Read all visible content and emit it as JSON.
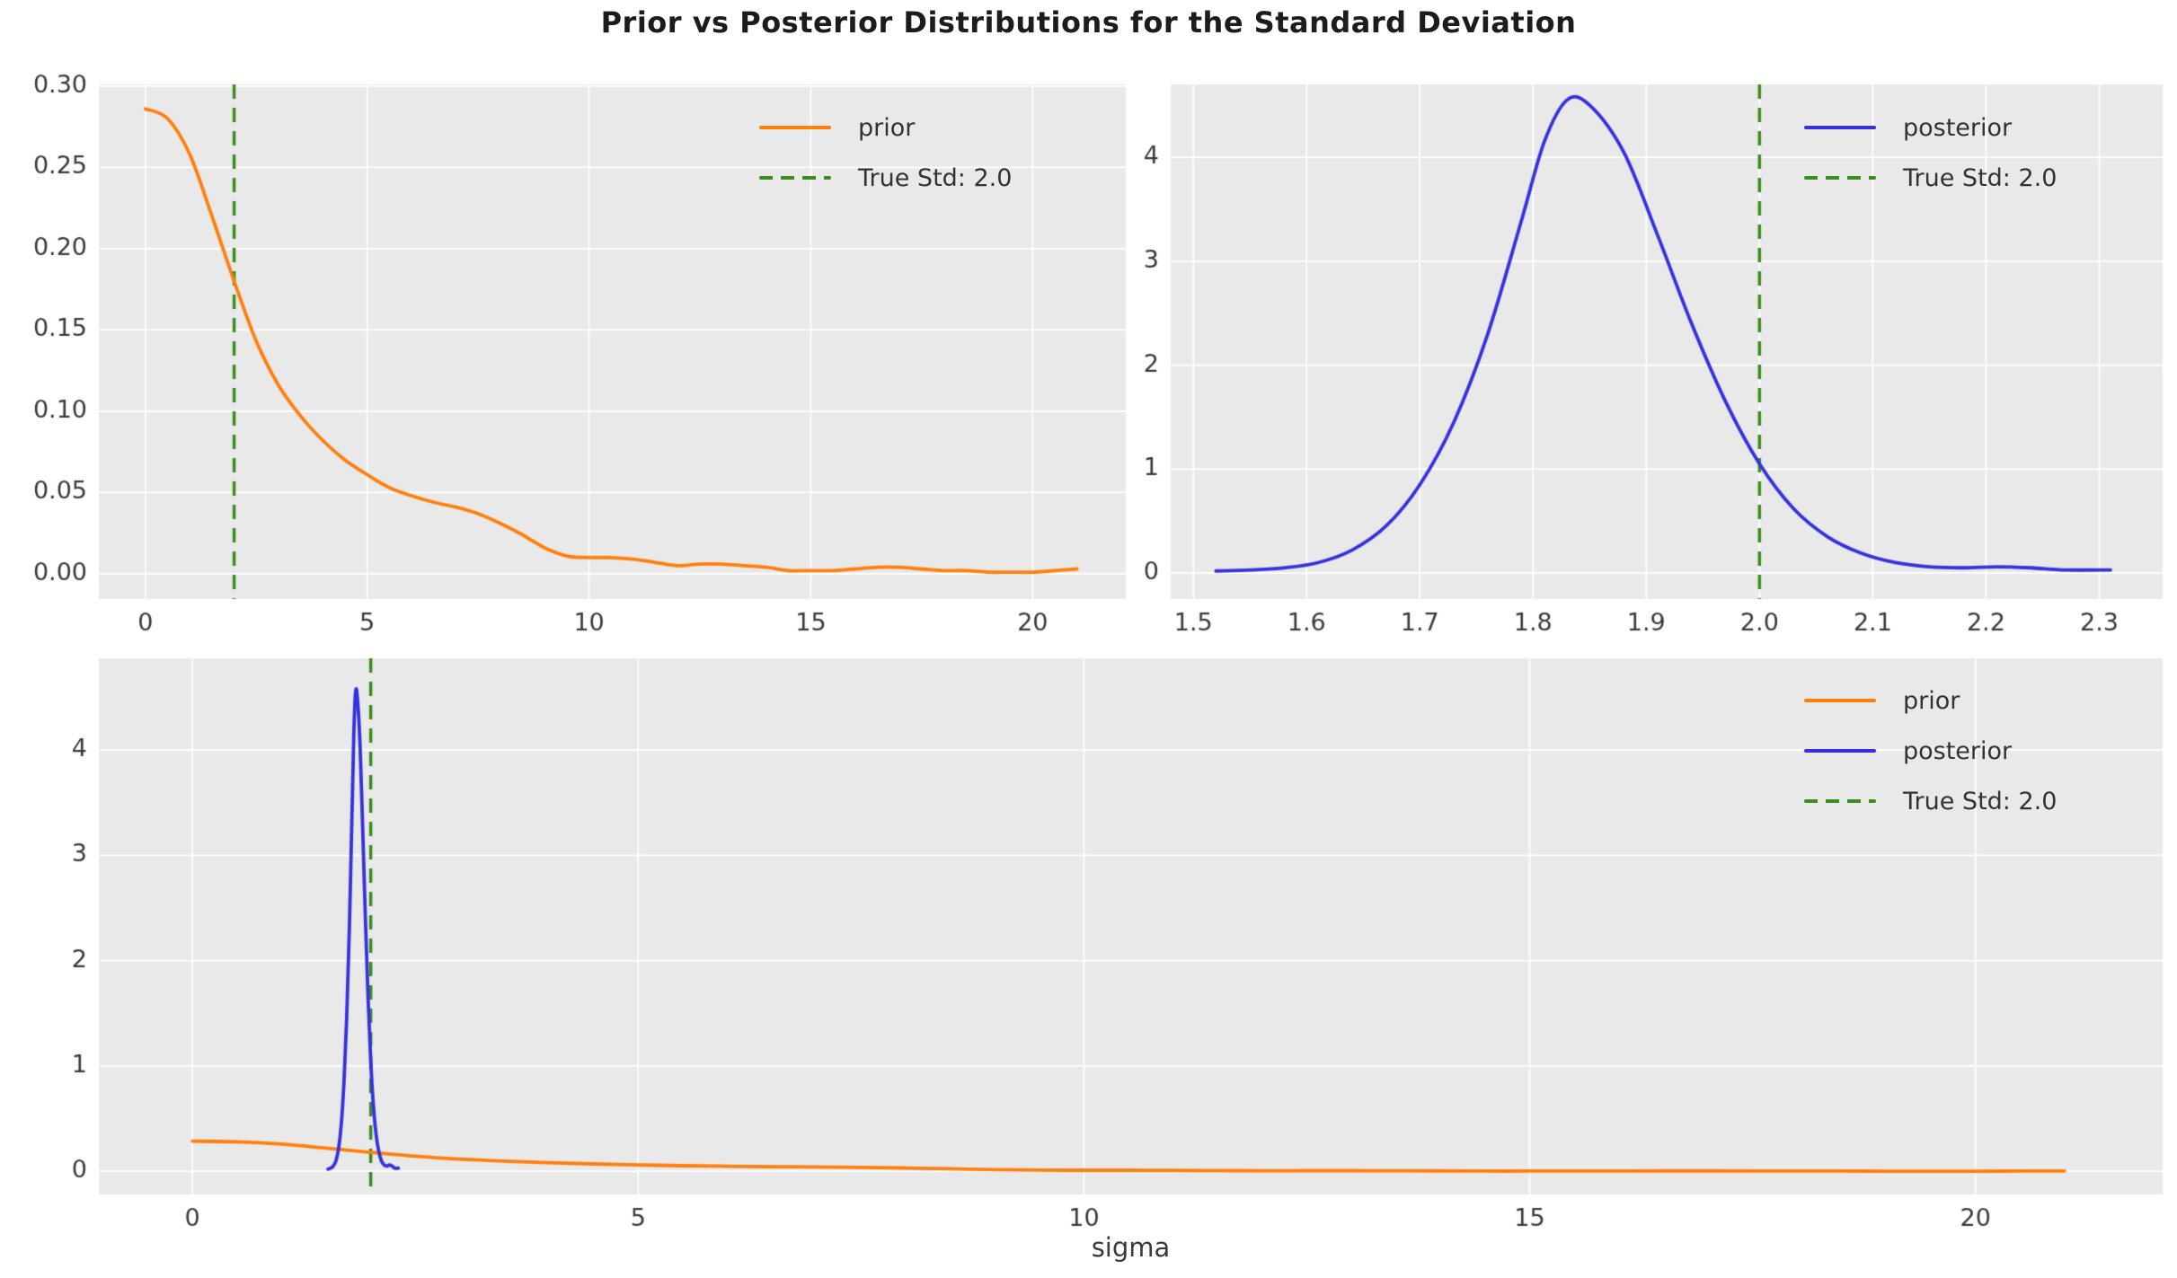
{
  "title": "Prior vs Posterior Distributions for the Standard Deviation",
  "colors": {
    "prior": "#ff7f0e",
    "posterior": "#3531dd",
    "true_std": "#388e1e",
    "axes_bg": "#e9e9e9",
    "grid": "#ffffff",
    "tick_text": "#3a3a3a",
    "title_text": "#1c1c1c",
    "figure_bg": "#ffffff"
  },
  "chart_data": [
    {
      "id": "prior-top-left",
      "type": "line",
      "title": "",
      "xlabel": "",
      "ylabel": "",
      "grid": true,
      "legend_position": "upper right",
      "xlim": [
        -1.05,
        22.1
      ],
      "ylim": [
        -0.0155,
        0.301
      ],
      "xticks": {
        "values": [
          0,
          5,
          10,
          15,
          20
        ],
        "labels": [
          "0",
          "5",
          "10",
          "15",
          "20"
        ]
      },
      "yticks": {
        "values": [
          0.0,
          0.05,
          0.1,
          0.15,
          0.2,
          0.25,
          0.3
        ],
        "labels": [
          "0.00",
          "0.05",
          "0.10",
          "0.15",
          "0.20",
          "0.25",
          "0.30"
        ]
      },
      "series": [
        {
          "name": "prior",
          "color": "#ff7f0e",
          "x": [
            0,
            0.5,
            1,
            1.5,
            2,
            2.5,
            3,
            3.5,
            4,
            4.5,
            5,
            5.5,
            6,
            6.5,
            7,
            7.5,
            8,
            8.5,
            9,
            9.5,
            10,
            10.5,
            11,
            11.5,
            12,
            12.5,
            13,
            13.5,
            14,
            14.5,
            15,
            15.5,
            16,
            16.5,
            17,
            17.5,
            18,
            18.5,
            19,
            19.5,
            20,
            20.5,
            21
          ],
          "y": [
            0.286,
            0.28,
            0.258,
            0.22,
            0.18,
            0.143,
            0.116,
            0.097,
            0.082,
            0.07,
            0.061,
            0.053,
            0.048,
            0.044,
            0.041,
            0.037,
            0.031,
            0.024,
            0.016,
            0.011,
            0.01,
            0.01,
            0.009,
            0.007,
            0.005,
            0.006,
            0.006,
            0.005,
            0.004,
            0.002,
            0.002,
            0.002,
            0.003,
            0.004,
            0.004,
            0.003,
            0.002,
            0.002,
            0.001,
            0.001,
            0.001,
            0.002,
            0.003
          ]
        }
      ],
      "vline": {
        "x": 2.0,
        "label": "True Std: 2.0",
        "color": "#388e1e",
        "style": "dashed"
      },
      "legend": [
        {
          "label": "prior",
          "style": "solid",
          "color": "#ff7f0e"
        },
        {
          "label": "True Std: 2.0",
          "style": "dashed",
          "color": "#388e1e"
        }
      ]
    },
    {
      "id": "posterior-top-right",
      "type": "line",
      "title": "",
      "xlabel": "",
      "ylabel": "",
      "grid": true,
      "legend_position": "upper right",
      "xlim": [
        1.48,
        2.356
      ],
      "ylim": [
        -0.25,
        4.7
      ],
      "xticks": {
        "values": [
          1.5,
          1.6,
          1.7,
          1.8,
          1.9,
          2.0,
          2.1,
          2.2,
          2.3
        ],
        "labels": [
          "1.5",
          "1.6",
          "1.7",
          "1.8",
          "1.9",
          "2.0",
          "2.1",
          "2.2",
          "2.3"
        ]
      },
      "yticks": {
        "values": [
          0,
          1,
          2,
          3,
          4
        ],
        "labels": [
          "0",
          "1",
          "2",
          "3",
          "4"
        ]
      },
      "series": [
        {
          "name": "posterior",
          "color": "#3531dd",
          "x": [
            1.52,
            1.55,
            1.58,
            1.61,
            1.64,
            1.67,
            1.7,
            1.73,
            1.76,
            1.79,
            1.81,
            1.83,
            1.85,
            1.88,
            1.91,
            1.94,
            1.97,
            2.0,
            2.03,
            2.06,
            2.09,
            2.12,
            2.15,
            2.18,
            2.21,
            2.24,
            2.27,
            2.31
          ],
          "y": [
            0.02,
            0.03,
            0.05,
            0.1,
            0.22,
            0.45,
            0.85,
            1.45,
            2.3,
            3.4,
            4.15,
            4.55,
            4.5,
            4.05,
            3.25,
            2.4,
            1.65,
            1.05,
            0.62,
            0.35,
            0.19,
            0.1,
            0.06,
            0.05,
            0.06,
            0.05,
            0.03,
            0.03
          ]
        }
      ],
      "vline": {
        "x": 2.0,
        "label": "True Std: 2.0",
        "color": "#388e1e",
        "style": "dashed"
      },
      "legend": [
        {
          "label": "posterior",
          "style": "solid",
          "color": "#3531dd"
        },
        {
          "label": "True Std: 2.0",
          "style": "dashed",
          "color": "#388e1e"
        }
      ]
    },
    {
      "id": "combined-bottom",
      "type": "line",
      "title": "",
      "xlabel": "sigma",
      "ylabel": "",
      "grid": true,
      "legend_position": "upper right",
      "xlim": [
        -1.05,
        22.1
      ],
      "ylim": [
        -0.22,
        4.87
      ],
      "xticks": {
        "values": [
          0,
          5,
          10,
          15,
          20
        ],
        "labels": [
          "0",
          "5",
          "10",
          "15",
          "20"
        ]
      },
      "yticks": {
        "values": [
          0,
          1,
          2,
          3,
          4
        ],
        "labels": [
          "0",
          "1",
          "2",
          "3",
          "4"
        ]
      },
      "series": [
        {
          "name": "prior",
          "color": "#ff7f0e",
          "x": [
            0,
            0.5,
            1,
            1.5,
            2,
            2.5,
            3,
            3.5,
            4,
            4.5,
            5,
            5.5,
            6,
            6.5,
            7,
            7.5,
            8,
            8.5,
            9,
            9.5,
            10,
            10.5,
            11,
            11.5,
            12,
            12.5,
            13,
            13.5,
            14,
            14.5,
            15,
            15.5,
            16,
            16.5,
            17,
            17.5,
            18,
            18.5,
            19,
            19.5,
            20,
            20.5,
            21
          ],
          "y": [
            0.286,
            0.28,
            0.258,
            0.22,
            0.18,
            0.143,
            0.116,
            0.097,
            0.082,
            0.07,
            0.061,
            0.053,
            0.048,
            0.044,
            0.041,
            0.037,
            0.031,
            0.024,
            0.016,
            0.011,
            0.01,
            0.01,
            0.009,
            0.007,
            0.005,
            0.006,
            0.006,
            0.005,
            0.004,
            0.002,
            0.002,
            0.002,
            0.003,
            0.004,
            0.004,
            0.003,
            0.002,
            0.002,
            0.001,
            0.001,
            0.001,
            0.002,
            0.003
          ]
        },
        {
          "name": "posterior",
          "color": "#3531dd",
          "x": [
            1.52,
            1.55,
            1.58,
            1.61,
            1.64,
            1.67,
            1.7,
            1.73,
            1.76,
            1.79,
            1.81,
            1.83,
            1.85,
            1.88,
            1.91,
            1.94,
            1.97,
            2.0,
            2.03,
            2.06,
            2.09,
            2.12,
            2.15,
            2.18,
            2.21,
            2.24,
            2.27,
            2.31
          ],
          "y": [
            0.02,
            0.03,
            0.05,
            0.1,
            0.22,
            0.45,
            0.85,
            1.45,
            2.3,
            3.4,
            4.15,
            4.55,
            4.5,
            4.05,
            3.25,
            2.4,
            1.65,
            1.05,
            0.62,
            0.35,
            0.19,
            0.1,
            0.06,
            0.05,
            0.06,
            0.05,
            0.03,
            0.03
          ]
        }
      ],
      "vline": {
        "x": 2.0,
        "label": "True Std: 2.0",
        "color": "#388e1e",
        "style": "dashed"
      },
      "legend": [
        {
          "label": "prior",
          "style": "solid",
          "color": "#ff7f0e"
        },
        {
          "label": "posterior",
          "style": "solid",
          "color": "#3531dd"
        },
        {
          "label": "True Std: 2.0",
          "style": "dashed",
          "color": "#388e1e"
        }
      ]
    }
  ]
}
